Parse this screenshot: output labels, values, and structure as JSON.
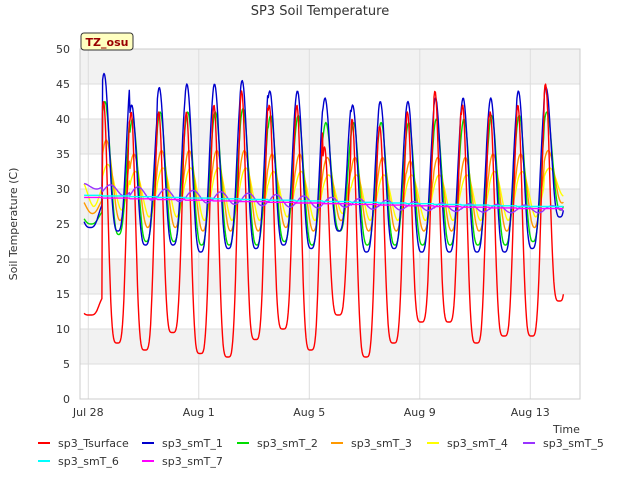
{
  "chart_data": {
    "type": "line",
    "title": "SP3 Soil Temperature",
    "xlabel": "Time",
    "ylabel": "Soil Temperature (C)",
    "ylim": [
      0,
      50
    ],
    "yticks": [
      0,
      5,
      10,
      15,
      20,
      25,
      30,
      35,
      40,
      45,
      50
    ],
    "xlim": [
      -0.3,
      17.8
    ],
    "xticks": [
      {
        "day": 0,
        "label": "Jul 28"
      },
      {
        "day": 4,
        "label": "Aug 1"
      },
      {
        "day": 8,
        "label": "Aug 5"
      },
      {
        "day": 12,
        "label": "Aug 9"
      },
      {
        "day": 16,
        "label": "Aug 13"
      }
    ],
    "grid": true,
    "badge": "TZ_osu",
    "legend_position": "bottom",
    "series": [
      {
        "name": "sp3_Tsurface",
        "color": "#ff0000",
        "daily_max": [
          14.5,
          42.5,
          41,
          41,
          41,
          42,
          44,
          42,
          42,
          36,
          40,
          39,
          41,
          44,
          42,
          41,
          42,
          45
        ],
        "daily_min": [
          12,
          8,
          7,
          9.5,
          6.5,
          6,
          8.5,
          10,
          7,
          12,
          6,
          8,
          11,
          11,
          8,
          9,
          9,
          14
        ]
      },
      {
        "name": "sp3_smT_1",
        "color": "#0000cc",
        "daily_max": [
          28,
          46.5,
          42,
          44.5,
          45,
          45,
          45.5,
          44,
          44,
          43,
          42,
          42.5,
          42.5,
          43,
          43,
          43,
          44,
          44.5
        ],
        "daily_min": [
          24.5,
          24,
          22,
          22,
          21,
          21.5,
          21.5,
          22,
          21.5,
          24,
          21,
          21.5,
          21,
          21,
          21,
          21,
          21.5,
          26
        ]
      },
      {
        "name": "sp3_smT_2",
        "color": "#00dd00",
        "daily_max": [
          27,
          42.5,
          40,
          41,
          41,
          41,
          41.5,
          40.5,
          40.5,
          39.5,
          39.5,
          39.5,
          39.5,
          40,
          40,
          40.5,
          40.5,
          41
        ],
        "daily_min": [
          25,
          23.5,
          22.5,
          22.5,
          22,
          22,
          22,
          22.5,
          22,
          24,
          22,
          22,
          22,
          22,
          22,
          22,
          22.5,
          27
        ]
      },
      {
        "name": "sp3_smT_3",
        "color": "#ff9900",
        "daily_max": [
          29,
          37,
          35,
          35.5,
          35.5,
          35.5,
          35.5,
          35,
          35,
          34.5,
          34.5,
          34.5,
          34,
          34.5,
          34.5,
          35,
          35,
          35.5
        ],
        "daily_min": [
          26.5,
          25.5,
          24.5,
          24.5,
          24,
          24,
          24,
          24.5,
          24,
          25.5,
          24,
          24,
          24,
          24,
          24,
          24,
          24.5,
          28
        ]
      },
      {
        "name": "sp3_smT_4",
        "color": "#ffff00",
        "daily_max": [
          31.5,
          33.5,
          32.5,
          33,
          33,
          33,
          33,
          32.5,
          32.5,
          32,
          32,
          32,
          32,
          32,
          32,
          32.5,
          32.5,
          33
        ],
        "daily_min": [
          27.5,
          27,
          26,
          26,
          25.5,
          25.5,
          25.5,
          26,
          25.5,
          26.5,
          25.5,
          25.5,
          25.5,
          25.5,
          25.5,
          25.5,
          26,
          29
        ]
      },
      {
        "name": "sp3_smT_5",
        "color": "#9933ff",
        "daily_max": [
          30.8,
          30.6,
          30.3,
          30,
          29.8,
          29.6,
          29.4,
          29.2,
          29,
          28.8,
          28.6,
          28.4,
          28.2,
          28,
          27.9,
          27.8,
          27.7,
          27.6
        ],
        "daily_min": [
          30,
          29,
          28.4,
          28.2,
          28,
          27.8,
          27.6,
          27.4,
          27.3,
          27.4,
          27.1,
          27,
          26.9,
          26.8,
          26.7,
          26.6,
          26.6,
          26.8
        ]
      },
      {
        "name": "sp3_smT_6",
        "color": "#00ffff",
        "daily_max": [
          29.1,
          29,
          28.9,
          28.8,
          28.7,
          28.6,
          28.5,
          28.4,
          28.3,
          28.2,
          28.1,
          28,
          27.9,
          27.8,
          27.7,
          27.6,
          27.5,
          27.5
        ],
        "daily_min": [
          29.1,
          29,
          28.9,
          28.8,
          28.7,
          28.6,
          28.5,
          28.4,
          28.3,
          28.2,
          28.1,
          28,
          27.9,
          27.8,
          27.7,
          27.6,
          27.5,
          27.5
        ]
      },
      {
        "name": "sp3_smT_7",
        "color": "#ff00ff",
        "daily_max": [
          28.8,
          28.7,
          28.6,
          28.5,
          28.4,
          28.3,
          28.2,
          28.1,
          28,
          27.9,
          27.8,
          27.7,
          27.6,
          27.5,
          27.4,
          27.3,
          27.2,
          27.2
        ],
        "daily_min": [
          28.8,
          28.7,
          28.6,
          28.5,
          28.4,
          28.3,
          28.2,
          28.1,
          28,
          27.9,
          27.8,
          27.7,
          27.6,
          27.5,
          27.4,
          27.3,
          27.2,
          27.2
        ]
      }
    ]
  },
  "colors": {
    "axis": "#cccccc",
    "band": "#f2f2f2",
    "text": "#333333",
    "badge_bg": "#ffffc0",
    "badge_text": "#990000"
  }
}
